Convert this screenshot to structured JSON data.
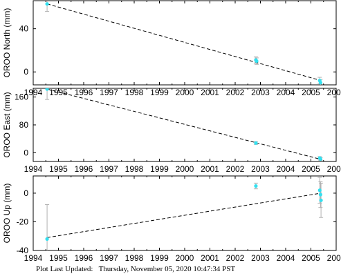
{
  "footer": {
    "label": "Plot Last Updated:",
    "timestamp": "Thursday, November 05, 2020 10:47:34 PST"
  },
  "colors": {
    "point": "#33e0f0",
    "errorbar": "#b0b0b0",
    "trend": "#000000"
  },
  "chart_data": [
    {
      "type": "scatter",
      "ylabel": "OROO North (mm)",
      "xlim": [
        1994,
        2006
      ],
      "ylim": [
        -12,
        66
      ],
      "xticks": [
        1994,
        1995,
        1996,
        1997,
        1998,
        1999,
        2000,
        2001,
        2002,
        2003,
        2004,
        2005,
        2006
      ],
      "yticks": [
        0,
        40
      ],
      "points": [
        {
          "x": 1994.55,
          "y": 63,
          "err": 7
        },
        {
          "x": 2002.82,
          "y": 11,
          "err": 3
        },
        {
          "x": 2002.85,
          "y": 10,
          "err": 3
        },
        {
          "x": 2005.35,
          "y": -8,
          "err": 3
        },
        {
          "x": 2005.38,
          "y": -10,
          "err": 3
        }
      ],
      "trend": [
        [
          1994.55,
          63
        ],
        [
          2005.4,
          -8
        ]
      ]
    },
    {
      "type": "scatter",
      "ylabel": "OROO East (mm)",
      "xlim": [
        1994,
        2006
      ],
      "ylim": [
        -25,
        185
      ],
      "xticks": [
        1994,
        1995,
        1996,
        1997,
        1998,
        1999,
        2000,
        2001,
        2002,
        2003,
        2004,
        2005,
        2006
      ],
      "yticks": [
        0,
        80,
        160
      ],
      "points": [
        {
          "x": 1994.55,
          "y": 183,
          "err": 30
        },
        {
          "x": 2002.82,
          "y": 28,
          "err": 4
        },
        {
          "x": 2005.35,
          "y": -15,
          "err": 4
        },
        {
          "x": 2005.38,
          "y": -18,
          "err": 4
        }
      ],
      "trend": [
        [
          1994.55,
          183
        ],
        [
          2005.45,
          -20
        ]
      ]
    },
    {
      "type": "scatter",
      "ylabel": "OROO Up (mm)",
      "xlim": [
        1994,
        2006
      ],
      "ylim": [
        -40,
        12
      ],
      "xticks": [
        1994,
        1995,
        1996,
        1997,
        1998,
        1999,
        2000,
        2001,
        2002,
        2003,
        2004,
        2005,
        2006
      ],
      "yticks": [
        -40,
        -20,
        0
      ],
      "points": [
        {
          "x": 1994.55,
          "y": -32,
          "err": 24
        },
        {
          "x": 2002.82,
          "y": 5,
          "err": 2
        },
        {
          "x": 2005.35,
          "y": 2,
          "err": 9
        },
        {
          "x": 2005.38,
          "y": -1,
          "err": 9
        },
        {
          "x": 2005.4,
          "y": -5,
          "err": 12
        }
      ],
      "trend": [
        [
          1994.55,
          -31
        ],
        [
          2005.4,
          0
        ]
      ]
    }
  ]
}
